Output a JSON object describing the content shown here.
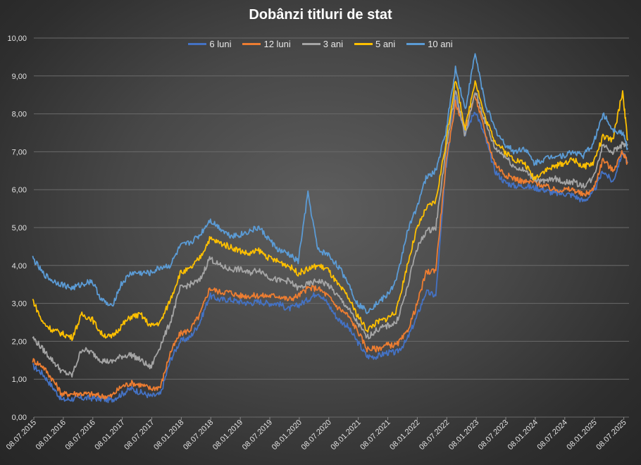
{
  "chart_data": {
    "type": "line",
    "title": "Dobânzi titluri de stat",
    "ylim": [
      0,
      10
    ],
    "y_ticks": [
      "0,00",
      "1,00",
      "2,00",
      "3,00",
      "4,00",
      "5,00",
      "6,00",
      "7,00",
      "8,00",
      "9,00",
      "10,00"
    ],
    "x_ticks": [
      "08.07.2015",
      "08.01.2016",
      "08.07.2016",
      "08.01.2017",
      "08.07.2017",
      "08.01.2018",
      "08.07.2018",
      "08.01.2019",
      "08.07.2019",
      "08.01.2020",
      "08.07.2020",
      "08.01.2021",
      "08.07.2021",
      "08.01.2022",
      "08.07.2022",
      "08.01.2023",
      "08.07.2023",
      "08.01.2024",
      "08.07.2024",
      "08.01.2025",
      "08.07.2025"
    ],
    "x": [
      "2015-07",
      "2015-09",
      "2015-11",
      "2016-01",
      "2016-03",
      "2016-05",
      "2016-07",
      "2016-09",
      "2016-11",
      "2017-01",
      "2017-03",
      "2017-05",
      "2017-07",
      "2017-09",
      "2017-11",
      "2018-01",
      "2018-03",
      "2018-05",
      "2018-07",
      "2018-09",
      "2018-11",
      "2019-01",
      "2019-03",
      "2019-05",
      "2019-07",
      "2019-09",
      "2019-11",
      "2020-01",
      "2020-03",
      "2020-05",
      "2020-07",
      "2020-09",
      "2020-11",
      "2021-01",
      "2021-03",
      "2021-05",
      "2021-07",
      "2021-09",
      "2021-11",
      "2022-01",
      "2022-03",
      "2022-05",
      "2022-07",
      "2022-09",
      "2022-11",
      "2023-01",
      "2023-03",
      "2023-05",
      "2023-07",
      "2023-09",
      "2023-11",
      "2024-01",
      "2024-03",
      "2024-05",
      "2024-07",
      "2024-09",
      "2024-11",
      "2025-01",
      "2025-03",
      "2025-05",
      "2025-07",
      "2025-08"
    ],
    "series": [
      {
        "name": "6 luni",
        "color": "#4472C4",
        "values": [
          1.35,
          1.15,
          0.8,
          0.45,
          0.48,
          0.5,
          0.5,
          0.48,
          0.45,
          0.6,
          0.75,
          0.65,
          0.55,
          0.6,
          1.5,
          2.0,
          2.1,
          2.5,
          3.2,
          3.1,
          3.1,
          3.05,
          3.0,
          3.05,
          3.0,
          3.0,
          2.85,
          2.95,
          3.1,
          3.3,
          3.0,
          2.6,
          2.4,
          2.0,
          1.6,
          1.6,
          1.7,
          1.7,
          2.0,
          2.6,
          3.3,
          3.2,
          6.5,
          8.5,
          7.5,
          8.1,
          7.4,
          6.5,
          6.2,
          6.1,
          6.1,
          6.05,
          6.0,
          5.9,
          5.9,
          5.85,
          5.7,
          5.9,
          6.5,
          6.2,
          7.0,
          6.7
        ]
      },
      {
        "name": "12 luni",
        "color": "#ED7D31",
        "values": [
          1.5,
          1.35,
          1.0,
          0.6,
          0.62,
          0.62,
          0.6,
          0.55,
          0.55,
          0.8,
          0.9,
          0.85,
          0.75,
          0.8,
          1.7,
          2.2,
          2.3,
          2.7,
          3.4,
          3.3,
          3.3,
          3.2,
          3.2,
          3.2,
          3.2,
          3.2,
          3.1,
          3.2,
          3.4,
          3.4,
          3.2,
          2.9,
          2.7,
          2.3,
          1.8,
          1.8,
          1.9,
          1.9,
          2.2,
          2.9,
          3.8,
          3.9,
          6.6,
          8.3,
          7.6,
          8.5,
          7.5,
          6.7,
          6.4,
          6.3,
          6.2,
          6.2,
          6.1,
          6.0,
          6.0,
          6.0,
          5.85,
          6.0,
          6.8,
          6.5,
          7.0,
          6.7
        ]
      },
      {
        "name": "3 ani",
        "color": "#A5A5A5",
        "values": [
          2.1,
          1.8,
          1.5,
          1.2,
          1.1,
          1.8,
          1.7,
          1.5,
          1.45,
          1.6,
          1.65,
          1.5,
          1.3,
          1.9,
          2.5,
          3.4,
          3.5,
          3.6,
          4.2,
          4.0,
          3.9,
          3.9,
          3.8,
          3.9,
          3.7,
          3.6,
          3.6,
          3.4,
          3.5,
          3.6,
          3.5,
          3.2,
          2.9,
          2.5,
          2.1,
          2.3,
          2.4,
          2.5,
          3.3,
          4.4,
          4.9,
          5.0,
          7.0,
          8.6,
          7.4,
          8.6,
          7.8,
          7.1,
          6.9,
          6.6,
          6.5,
          6.3,
          6.2,
          6.3,
          6.2,
          6.2,
          6.1,
          6.3,
          7.2,
          7.0,
          7.2,
          7.2
        ]
      },
      {
        "name": "5 ani",
        "color": "#FFC000",
        "values": [
          3.1,
          2.5,
          2.3,
          2.2,
          2.1,
          2.7,
          2.6,
          2.2,
          2.1,
          2.4,
          2.65,
          2.7,
          2.4,
          2.5,
          3.1,
          3.8,
          3.9,
          4.2,
          4.7,
          4.6,
          4.5,
          4.4,
          4.3,
          4.4,
          4.2,
          4.1,
          4.0,
          3.8,
          3.9,
          4.0,
          3.9,
          3.5,
          3.2,
          2.7,
          2.3,
          2.5,
          2.6,
          2.8,
          3.9,
          4.9,
          5.5,
          5.7,
          7.2,
          8.9,
          7.6,
          8.9,
          7.9,
          7.3,
          7.0,
          6.8,
          6.7,
          6.3,
          6.5,
          6.6,
          6.7,
          6.8,
          6.6,
          6.7,
          7.4,
          7.3,
          8.6,
          7.3
        ]
      },
      {
        "name": "10 ani",
        "color": "#5B9BD5",
        "values": [
          4.2,
          3.8,
          3.6,
          3.5,
          3.4,
          3.5,
          3.6,
          3.1,
          2.9,
          3.5,
          3.8,
          3.8,
          3.8,
          3.95,
          4.0,
          4.5,
          4.6,
          4.8,
          5.2,
          5.0,
          4.8,
          4.8,
          4.9,
          5.0,
          4.7,
          4.4,
          4.3,
          4.1,
          5.9,
          4.4,
          4.3,
          4.0,
          3.6,
          3.0,
          2.8,
          3.0,
          3.2,
          3.6,
          4.8,
          5.5,
          6.3,
          6.5,
          7.5,
          9.2,
          8.1,
          9.6,
          8.3,
          7.6,
          7.2,
          7.0,
          7.1,
          6.7,
          6.8,
          6.9,
          6.9,
          7.0,
          6.9,
          7.2,
          8.0,
          7.6,
          7.5,
          7.1
        ]
      }
    ]
  }
}
